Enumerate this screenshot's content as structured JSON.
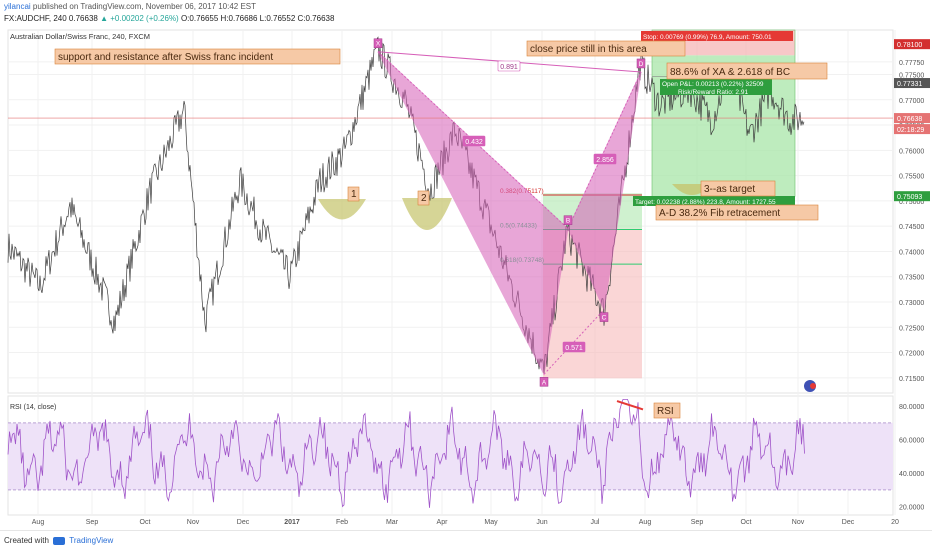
{
  "header": {
    "author": "yilancai",
    "published": "published on TradingView.com, November 06, 2017 10:42 EST",
    "symbol_line": "FX:AUDCHF, 240",
    "last": "0.76638",
    "change": "▲ +0.00202 (+0.26%)",
    "ohlc": "O:0.76655 H:0.76686 L:0.76552 C:0.76638"
  },
  "footer": {
    "created_with": "Created with",
    "brand": "TradingView"
  },
  "colors": {
    "harmonic": "#d65fb8",
    "label_bg": "#f6c9a6",
    "label_border": "#d9843a",
    "profit": "#a8e5a8",
    "loss": "#f5b5b5",
    "rsi": "#a055c9",
    "rsi_band": "#eee2f8",
    "price_line": "#e57373",
    "fib_red": "#d32f2f",
    "fib_green": "#2ecc71"
  },
  "chart_data": [
    {
      "type": "line",
      "title": "Australian Dollar/Swiss Franc, 240, FXCM",
      "y_ticks": [
        "0.77750",
        "0.77500",
        "0.77000",
        "0.76500",
        "0.76000",
        "0.75500",
        "0.75000",
        "0.74500",
        "0.74000",
        "0.73500",
        "0.73000",
        "0.72500",
        "0.72000",
        "0.71500"
      ],
      "y_tick_values": [
        0.7775,
        0.775,
        0.77,
        0.765,
        0.76,
        0.755,
        0.75,
        0.745,
        0.74,
        0.735,
        0.73,
        0.725,
        0.72,
        0.715
      ],
      "ylim": [
        0.712,
        0.7838
      ],
      "x_ticks": [
        "Aug",
        "Sep",
        "Oct",
        "Nov",
        "Dec",
        "2017",
        "Feb",
        "Mar",
        "Apr",
        "May",
        "Jun",
        "Jul",
        "Aug",
        "Sep",
        "Oct",
        "Nov",
        "Dec",
        "20"
      ],
      "price_tags": [
        {
          "text": "0.78100",
          "value": 0.781,
          "color": "#d32f2f"
        },
        {
          "text": "0.77331",
          "value": 0.77331,
          "color": "#555555"
        },
        {
          "text": "0.76638",
          "value": 0.76638,
          "color": "#e57373"
        },
        {
          "text": "02:18:29",
          "value": 0.7642,
          "color": "#e57373"
        },
        {
          "text": "0.75093",
          "value": 0.75093,
          "color": "#2e9e3e"
        }
      ],
      "pattern_points": [
        {
          "label": "X",
          "x_month": "Feb/Mar",
          "value": 0.7795
        },
        {
          "label": "A",
          "x_month": "Jun",
          "value": 0.7157
        },
        {
          "label": "B",
          "x_month": "Jun/Jul",
          "value": 0.7445
        },
        {
          "label": "C",
          "x_month": "Jul",
          "value": 0.7285
        },
        {
          "label": "D",
          "x_month": "Jul/Aug",
          "value": 0.7755
        }
      ],
      "ratios": [
        {
          "text": "0.891",
          "type": "XD"
        },
        {
          "text": "0.432",
          "type": "XB"
        },
        {
          "text": "0.571",
          "type": "AC"
        },
        {
          "text": "2.856",
          "type": "BD"
        }
      ],
      "fib_levels": [
        {
          "text": "0.382(0.75117)",
          "value": 0.75117,
          "color": "#d32f2f"
        },
        {
          "text": "0.5(0.74433)",
          "value": 0.74433,
          "color": "#2ecc71"
        },
        {
          "text": "0.618(0.73748)",
          "value": 0.73748,
          "color": "#2ecc71"
        }
      ],
      "trade_boxes": [
        {
          "stop": "Stop: 0.00769 (0.99%) 76.9, Amount: 750.01",
          "open": "Open P&L: 0.00213 (0.22%) 32509",
          "rr": "Risk/Reward Ratio: 2.91",
          "target": "Target: 0.02238 (2.88%) 223.8, Amount: 1727.55"
        },
        {
          "entry_from": 0.7515,
          "entry_to": 0.7445,
          "stop_to": 0.7149
        }
      ],
      "annotations": [
        "support and resistance after Swiss franc incident",
        "close price still in this area",
        "88.6% of XA & 2.618 of BC",
        "3--as target",
        "A-D 38.2% Fib retracement",
        "1",
        "2"
      ]
    },
    {
      "type": "line",
      "title": "RSI (14, close)",
      "y_ticks": [
        "80.0000",
        "60.0000",
        "40.0000",
        "20.0000"
      ],
      "y_tick_values": [
        80,
        60,
        40,
        20
      ],
      "ylim": [
        15,
        86
      ],
      "band": [
        30,
        70
      ],
      "annotations": [
        "RSI"
      ]
    }
  ]
}
